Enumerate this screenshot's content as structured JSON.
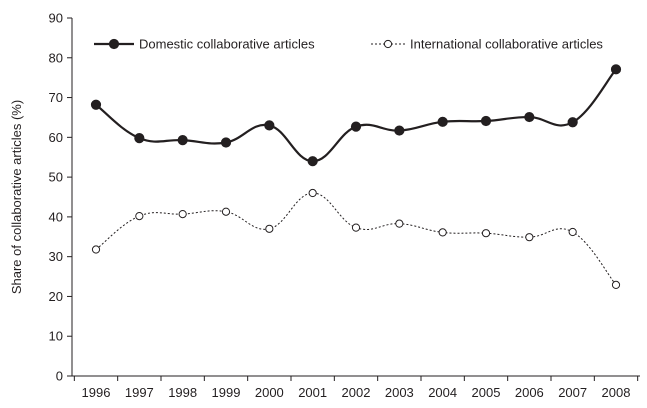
{
  "chart_data": {
    "type": "line",
    "ylabel": "Share of collaborative articles (%)",
    "xlabel": "",
    "ylim": [
      0,
      90
    ],
    "yticks": [
      "0",
      "10",
      "20",
      "30",
      "40",
      "50",
      "60",
      "70",
      "80",
      "90"
    ],
    "categories": [
      "1996",
      "1997",
      "1998",
      "1999",
      "2000",
      "2001",
      "2002",
      "2003",
      "2004",
      "2005",
      "2006",
      "2007",
      "2008"
    ],
    "grid": false,
    "legend_position": "top",
    "series": [
      {
        "name": "Domestic collaborative articles",
        "marker": "filled-circle",
        "line_style": "solid",
        "color": "#231f20",
        "values": [
          68.2,
          59.8,
          59.3,
          58.7,
          63.0,
          54.0,
          62.7,
          61.7,
          63.9,
          64.1,
          65.1,
          63.8,
          77.1
        ]
      },
      {
        "name": "International collaborative articles",
        "marker": "open-circle",
        "line_style": "dotted",
        "color": "#231f20",
        "values": [
          31.8,
          40.2,
          40.7,
          41.3,
          37.0,
          46.0,
          37.3,
          38.3,
          36.1,
          35.9,
          34.9,
          36.2,
          22.9
        ]
      }
    ]
  }
}
